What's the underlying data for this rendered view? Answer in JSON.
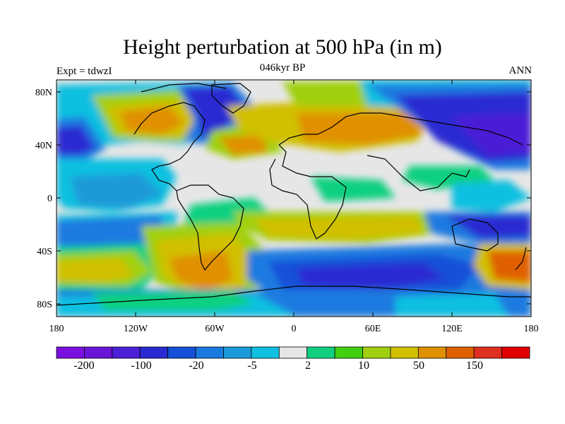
{
  "title": "Height perturbation at 500 hPa (in m)",
  "left_label": "Expt = tdwzI",
  "center_label": "046kyr BP",
  "right_label": "ANN",
  "lat_ticks": [
    "80N",
    "40N",
    "0",
    "40S",
    "80S"
  ],
  "lon_ticks": [
    "180",
    "120W",
    "60W",
    "0",
    "60E",
    "120E",
    "180"
  ],
  "colorbar": {
    "colors": [
      "#7a10e0",
      "#6a14d8",
      "#4b1fd6",
      "#2a2ad2",
      "#1450d8",
      "#1a7ae0",
      "#1a9ad8",
      "#10c0e0",
      "#e6e6e6",
      "#10d080",
      "#40d010",
      "#a0d010",
      "#d0c000",
      "#e09000",
      "#e06000",
      "#e03020",
      "#e00000"
    ],
    "labels": [
      "-200",
      "-100",
      "-20",
      "-5",
      "2",
      "10",
      "50",
      "150"
    ]
  }
}
